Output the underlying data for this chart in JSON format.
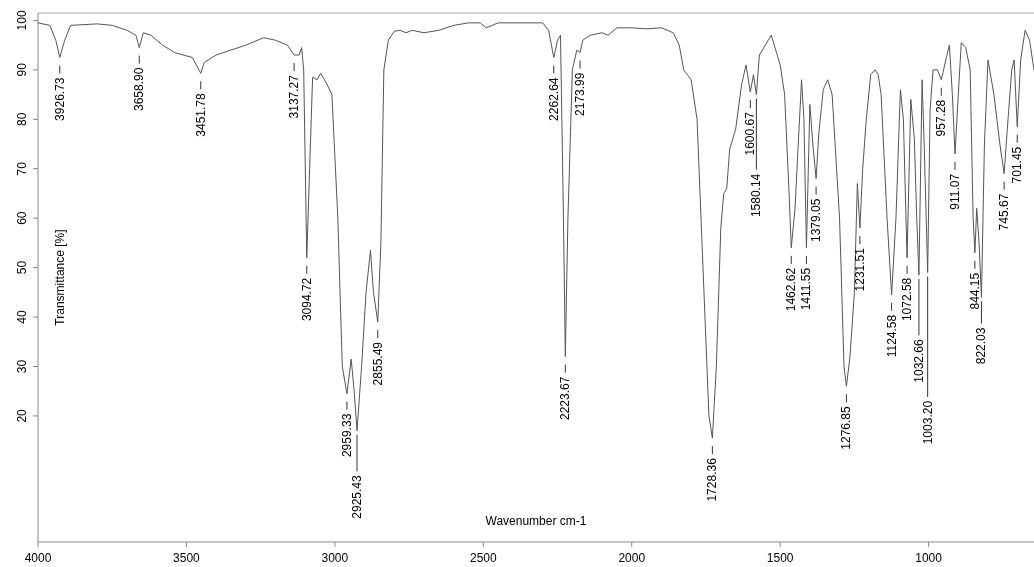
{
  "chart_data": {
    "type": "line",
    "xlabel": "Wavenumber cm-1",
    "ylabel": "Transmittance [%]",
    "xlim": [
      4000,
      645
    ],
    "xticks": [
      4000,
      3500,
      3000,
      2500,
      2000,
      1500,
      1000
    ],
    "ylim": [
      -5.5,
      101.5
    ],
    "yticks": [
      20,
      30,
      40,
      50,
      60,
      70,
      80,
      90,
      100
    ],
    "grid": false,
    "series": [
      {
        "color": "#555555",
        "x": [
          4000,
          3960,
          3940,
          3926.73,
          3910,
          3890,
          3800,
          3750,
          3700,
          3670,
          3658.9,
          3645,
          3620,
          3580,
          3540,
          3480,
          3451.78,
          3440,
          3400,
          3300,
          3240,
          3200,
          3160,
          3137.27,
          3120,
          3112,
          3105,
          3094.72,
          3085,
          3075,
          3060,
          3048,
          3030,
          3010,
          2990,
          2975,
          2959.33,
          2945,
          2935,
          2925.43,
          2910,
          2895,
          2880,
          2870,
          2855.49,
          2845,
          2835,
          2820,
          2800,
          2780,
          2760,
          2740,
          2700,
          2650,
          2600,
          2550,
          2510,
          2490,
          2450,
          2300,
          2280,
          2262.64,
          2250,
          2240,
          2230,
          2223.67,
          2215,
          2200,
          2185,
          2173.99,
          2165,
          2140,
          2100,
          2080,
          2050,
          2000,
          1950,
          1900,
          1860,
          1840,
          1825,
          1800,
          1780,
          1760,
          1740,
          1728.36,
          1715,
          1700,
          1690,
          1680,
          1670,
          1650,
          1630,
          1615,
          1600.67,
          1590,
          1580.14,
          1570,
          1550,
          1530,
          1510,
          1500,
          1485,
          1470,
          1462.62,
          1450,
          1440,
          1428,
          1420,
          1411.55,
          1400,
          1390,
          1379.05,
          1370,
          1355,
          1340,
          1325,
          1300,
          1285,
          1276.85,
          1265,
          1250,
          1240,
          1231.51,
          1222,
          1210,
          1195,
          1180,
          1170,
          1160,
          1140,
          1124.58,
          1110,
          1095,
          1085,
          1072.58,
          1060,
          1048,
          1040,
          1032.66,
          1022,
          1015,
          1003.2,
          995,
          985,
          970,
          957.28,
          940,
          930,
          920,
          911.07,
          900,
          890,
          875,
          860,
          850,
          844.15,
          838,
          830,
          822.03,
          812,
          800,
          780,
          760,
          745.67,
          735,
          720,
          712,
          701.45,
          690,
          675,
          660,
          645
        ],
        "values": [
          99.5,
          99,
          96,
          92.5,
          96,
          99,
          99.3,
          99,
          98,
          97,
          94.5,
          97.5,
          97,
          95,
          93.5,
          92.5,
          89.3,
          91.5,
          93,
          95,
          96.5,
          96,
          95,
          93,
          93,
          94.5,
          90,
          52,
          70,
          88.5,
          88,
          89.3,
          87.5,
          85,
          60,
          30,
          24.5,
          31.5,
          25,
          17,
          30,
          45,
          53.5,
          45,
          39,
          55,
          90,
          96,
          97.8,
          98,
          97.5,
          98,
          97.5,
          98,
          99,
          99.5,
          99.5,
          98.5,
          99.5,
          99.5,
          98,
          92.5,
          96,
          97,
          60,
          32,
          60,
          90,
          94,
          93.5,
          96,
          97,
          97.5,
          97,
          98.5,
          98.5,
          98.3,
          98.5,
          97.5,
          95,
          90,
          88,
          80,
          50,
          20,
          15.5,
          30,
          58,
          65,
          66,
          74,
          78,
          87,
          91,
          85.5,
          89,
          85,
          93,
          95,
          97,
          93,
          91,
          85,
          65,
          54,
          62,
          74,
          88,
          80,
          54,
          83,
          75,
          68,
          77,
          86,
          88,
          85,
          60,
          30,
          26,
          32,
          45,
          67,
          58,
          70,
          80,
          89,
          90,
          89,
          85,
          60,
          44.5,
          60,
          86,
          80,
          52,
          84,
          76,
          60,
          48.5,
          88,
          75,
          49,
          82,
          90,
          90,
          88,
          92.5,
          95,
          85,
          73,
          85,
          95.5,
          94.5,
          90,
          60,
          53,
          62,
          55,
          44,
          75,
          92,
          85,
          75,
          69,
          78,
          90,
          92,
          78.5,
          92,
          98,
          96,
          90
        ]
      }
    ],
    "annotations": [
      {
        "text": "3926.73",
        "x": 3926.73,
        "y": 92.5
      },
      {
        "text": "3658.90",
        "x": 3658.9,
        "y": 94.5
      },
      {
        "text": "3451.78",
        "x": 3451.78,
        "y": 89.3
      },
      {
        "text": "3137.27",
        "x": 3137.27,
        "y": 93
      },
      {
        "text": "3094.72",
        "x": 3094.72,
        "y": 52
      },
      {
        "text": "2959.33",
        "x": 2959.33,
        "y": 24.5
      },
      {
        "text": "2925.43",
        "x": 2925.43,
        "y": 17
      },
      {
        "text": "2855.49",
        "x": 2855.49,
        "y": 39
      },
      {
        "text": "2262.64",
        "x": 2262.64,
        "y": 92.5
      },
      {
        "text": "2223.67",
        "x": 2223.67,
        "y": 32
      },
      {
        "text": "2173.99",
        "x": 2173.99,
        "y": 93.5
      },
      {
        "text": "1728.36",
        "x": 1728.36,
        "y": 15.5
      },
      {
        "text": "1600.67",
        "x": 1600.67,
        "y": 85.5
      },
      {
        "text": "1580.14",
        "x": 1580.14,
        "y": 85
      },
      {
        "text": "1462.62",
        "x": 1462.62,
        "y": 54
      },
      {
        "text": "1411.55",
        "x": 1411.55,
        "y": 54
      },
      {
        "text": "1379.05",
        "x": 1379.05,
        "y": 68
      },
      {
        "text": "1276.85",
        "x": 1276.85,
        "y": 26
      },
      {
        "text": "1231.51",
        "x": 1231.51,
        "y": 58
      },
      {
        "text": "1124.58",
        "x": 1124.58,
        "y": 44.5
      },
      {
        "text": "1072.58",
        "x": 1072.58,
        "y": 52
      },
      {
        "text": "1032.66",
        "x": 1032.66,
        "y": 48.5
      },
      {
        "text": "1003.20",
        "x": 1003.2,
        "y": 49
      },
      {
        "text": "957.28",
        "x": 957.28,
        "y": 88
      },
      {
        "text": "911.07",
        "x": 911.07,
        "y": 73
      },
      {
        "text": "844.15",
        "x": 844.15,
        "y": 53
      },
      {
        "text": "822.03",
        "x": 822.03,
        "y": 44
      },
      {
        "text": "745.67",
        "x": 745.67,
        "y": 69
      },
      {
        "text": "701.45",
        "x": 701.45,
        "y": 78.5
      }
    ]
  }
}
